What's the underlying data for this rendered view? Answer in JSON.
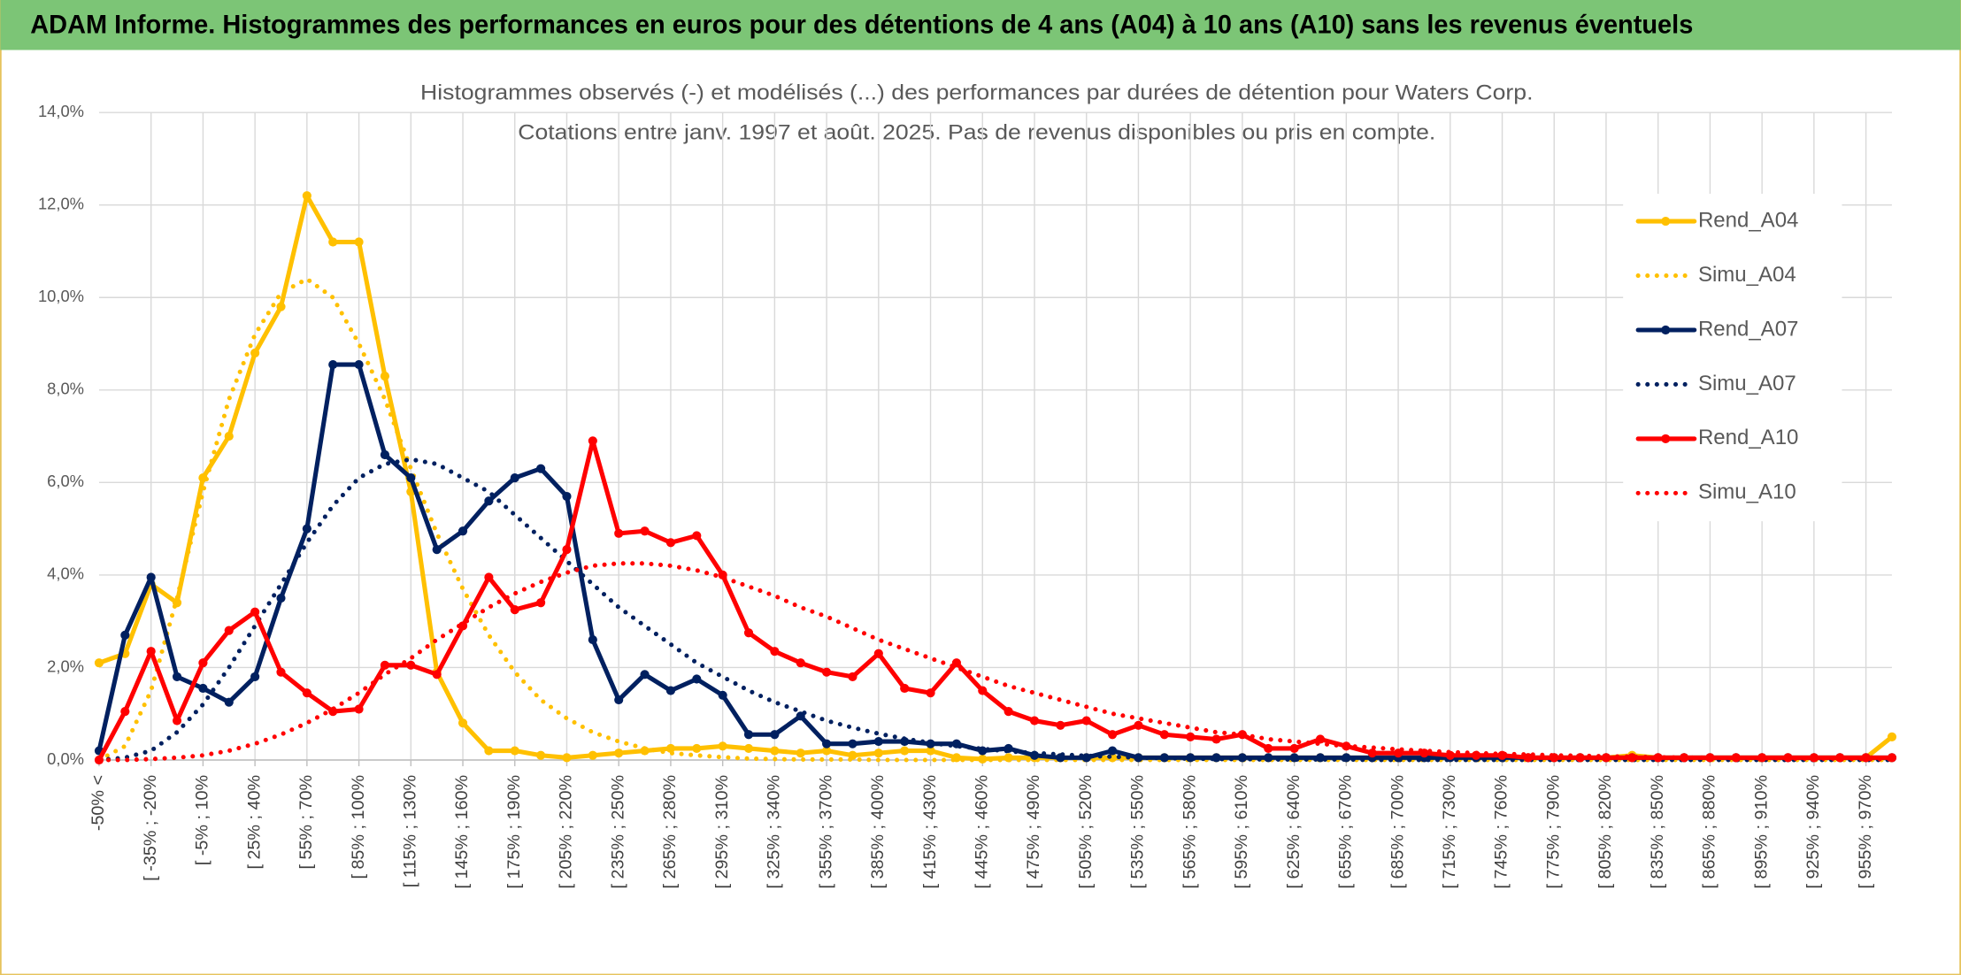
{
  "header": {
    "title": "ADAM Informe. Histogrammes des performances en euros pour des détentions de 4 ans (A04) à 10 ans (A10) sans les revenus éventuels"
  },
  "chart_data": {
    "type": "line",
    "title": "Histogrammes observés (-) et modélisés (...) des performances par durées de détention pour Waters Corp.",
    "subtitle": "Cotations entre janv. 1997 et août. 2025. Pas de revenus disponibles ou pris en compte.",
    "categories": [
      "-50% <",
      null,
      "[ -35% ; -20%",
      null,
      "[ -5% ; 10%",
      null,
      "[ 25% ; 40%",
      null,
      "[ 55% ; 70%",
      null,
      "[ 85% ; 100%",
      null,
      "[ 115% ; 130%",
      null,
      "[ 145% ; 160%",
      null,
      "[ 175% ; 190%",
      null,
      "[ 205% ; 220%",
      null,
      "[ 235% ; 250%",
      null,
      "[ 265% ; 280%",
      null,
      "[ 295% ; 310%",
      null,
      "[ 325% ; 340%",
      null,
      "[ 355% ; 370%",
      null,
      "[ 385% ; 400%",
      null,
      "[ 415% ; 430%",
      null,
      "[ 445% ; 460%",
      null,
      "[ 475% ; 490%",
      null,
      "[ 505% ; 520%",
      null,
      "[ 535% ; 550%",
      null,
      "[ 565% ; 580%",
      null,
      "[ 595% ; 610%",
      null,
      "[ 625% ; 640%",
      null,
      "[ 655% ; 670%",
      null,
      "[ 685% ; 700%",
      null,
      "[ 715% ; 730%",
      null,
      "[ 745% ; 760%",
      null,
      "[ 775% ; 790%",
      null,
      "[ 805% ; 820%",
      null,
      "[ 835% ; 850%",
      null,
      "[ 865% ; 880%",
      null,
      "[ 895% ; 910%",
      null,
      "[ 925% ; 940%",
      null,
      "[ 955% ; 970%",
      null
    ],
    "ylim": [
      0,
      14
    ],
    "yticks": [
      {
        "value": 0,
        "label": "0,0%"
      },
      {
        "value": 2,
        "label": "2,0%"
      },
      {
        "value": 4,
        "label": "4,0%"
      },
      {
        "value": 6,
        "label": "6,0%"
      },
      {
        "value": 8,
        "label": "8,0%"
      },
      {
        "value": 10,
        "label": "10,0%"
      },
      {
        "value": 12,
        "label": "12,0%"
      },
      {
        "value": 14,
        "label": "14,0%"
      }
    ],
    "grid": true,
    "legend": "right",
    "series": [
      {
        "name": "Rend_A04",
        "color": "#ffc000",
        "style": "solid",
        "values": [
          2.1,
          2.3,
          3.8,
          3.4,
          6.1,
          7.0,
          8.8,
          9.8,
          12.2,
          11.2,
          11.2,
          8.3,
          5.8,
          1.9,
          0.8,
          0.2,
          0.2,
          0.1,
          0.05,
          0.1,
          0.15,
          0.2,
          0.25,
          0.25,
          0.3,
          0.25,
          0.2,
          0.15,
          0.2,
          0.1,
          0.15,
          0.2,
          0.2,
          0.05,
          0.02,
          0.05,
          0.05,
          0.05,
          0.05,
          0.05,
          0.05,
          0.05,
          0.05,
          0.05,
          0.05,
          0.05,
          0.05,
          0.05,
          0.05,
          0.05,
          0.05,
          0.05,
          0.05,
          0.05,
          0.05,
          0.05,
          0.05,
          0.05,
          0.05,
          0.1,
          0.05,
          0.05,
          0.05,
          0.05,
          0.05,
          0.05,
          0.05,
          0.05,
          0.05,
          0.5
        ]
      },
      {
        "name": "Simu_A04",
        "color": "#ffc000",
        "style": "dotted",
        "values": [
          0,
          0.3,
          1.5,
          3.5,
          5.8,
          7.8,
          9.2,
          10.1,
          10.4,
          10.0,
          9.0,
          7.8,
          6.3,
          4.9,
          3.7,
          2.7,
          1.9,
          1.3,
          0.9,
          0.6,
          0.4,
          0.25,
          0.15,
          0.1,
          0.06,
          0.03,
          0.02,
          0.01,
          0.01,
          0.01,
          0,
          0,
          0,
          0,
          0,
          0,
          0,
          0,
          0,
          0,
          0,
          0,
          0,
          0,
          0,
          0,
          0,
          0,
          0,
          0,
          0,
          0,
          0,
          0,
          0,
          0,
          0,
          0,
          0,
          0,
          0,
          0,
          0,
          0,
          0,
          0,
          0,
          0,
          0,
          0
        ]
      },
      {
        "name": "Rend_A07",
        "color": "#002060",
        "style": "solid",
        "values": [
          0.2,
          2.7,
          3.95,
          1.8,
          1.55,
          1.25,
          1.8,
          3.5,
          5.0,
          8.55,
          8.55,
          6.6,
          6.1,
          4.55,
          4.95,
          5.6,
          6.1,
          6.3,
          5.7,
          2.6,
          1.3,
          1.85,
          1.5,
          1.75,
          1.4,
          0.55,
          0.55,
          0.95,
          0.35,
          0.35,
          0.4,
          0.4,
          0.35,
          0.35,
          0.2,
          0.25,
          0.1,
          0.05,
          0.05,
          0.2,
          0.05,
          0.05,
          0.05,
          0.05,
          0.05,
          0.05,
          0.05,
          0.05,
          0.05,
          0.05,
          0.05,
          0.05,
          0.05,
          0.05,
          0.05,
          0.05,
          0.05,
          0.05,
          0.05,
          0.05,
          0.05,
          0.05,
          0.05,
          0.05,
          0.05,
          0.05,
          0.05,
          0.05,
          0.05,
          0.05
        ]
      },
      {
        "name": "Simu_A07",
        "color": "#002060",
        "style": "dotted",
        "values": [
          0,
          0.05,
          0.2,
          0.6,
          1.2,
          2.0,
          2.9,
          3.8,
          4.7,
          5.5,
          6.1,
          6.4,
          6.5,
          6.4,
          6.1,
          5.8,
          5.3,
          4.8,
          4.3,
          3.8,
          3.3,
          2.9,
          2.5,
          2.1,
          1.8,
          1.5,
          1.25,
          1.05,
          0.85,
          0.7,
          0.57,
          0.46,
          0.37,
          0.3,
          0.24,
          0.19,
          0.15,
          0.12,
          0.09,
          0.07,
          0.05,
          0.04,
          0.03,
          0.02,
          0.02,
          0.01,
          0.01,
          0.01,
          0.01,
          0,
          0,
          0,
          0,
          0,
          0,
          0,
          0,
          0,
          0,
          0,
          0,
          0,
          0,
          0,
          0,
          0,
          0,
          0,
          0,
          0
        ]
      },
      {
        "name": "Rend_A10",
        "color": "#ff0000",
        "style": "solid",
        "values": [
          0,
          1.05,
          2.35,
          0.85,
          2.1,
          2.8,
          3.2,
          1.9,
          1.45,
          1.05,
          1.1,
          2.05,
          2.05,
          1.85,
          2.9,
          3.95,
          3.25,
          3.4,
          4.55,
          6.9,
          4.9,
          4.95,
          4.7,
          4.85,
          4.0,
          2.75,
          2.35,
          2.1,
          1.9,
          1.8,
          2.3,
          1.55,
          1.45,
          2.1,
          1.5,
          1.05,
          0.85,
          0.75,
          0.85,
          0.55,
          0.75,
          0.55,
          0.5,
          0.45,
          0.55,
          0.25,
          0.25,
          0.45,
          0.3,
          0.15,
          0.15,
          0.15,
          0.1,
          0.1,
          0.1,
          0.05,
          0.05,
          0.05,
          0.05,
          0.05,
          0.05,
          0.05,
          0.05,
          0.05,
          0.05,
          0.05,
          0.05,
          0.05,
          0.05,
          0.05
        ]
      },
      {
        "name": "Simu_A10",
        "color": "#ff0000",
        "style": "dotted",
        "values": [
          0,
          0,
          0.02,
          0.05,
          0.1,
          0.2,
          0.35,
          0.55,
          0.8,
          1.1,
          1.45,
          1.85,
          2.2,
          2.6,
          2.95,
          3.3,
          3.6,
          3.85,
          4.05,
          4.2,
          4.25,
          4.25,
          4.2,
          4.1,
          3.95,
          3.75,
          3.55,
          3.3,
          3.1,
          2.85,
          2.6,
          2.4,
          2.2,
          2.0,
          1.8,
          1.6,
          1.45,
          1.3,
          1.15,
          1.0,
          0.9,
          0.8,
          0.7,
          0.6,
          0.55,
          0.45,
          0.4,
          0.35,
          0.3,
          0.27,
          0.23,
          0.2,
          0.17,
          0.15,
          0.13,
          0.12,
          0.1,
          0.09,
          0.08,
          0.07,
          0.06,
          0.05,
          0.05,
          0.04,
          0.04,
          0.03,
          0.03,
          0.03,
          0.02,
          0.02
        ]
      }
    ]
  }
}
